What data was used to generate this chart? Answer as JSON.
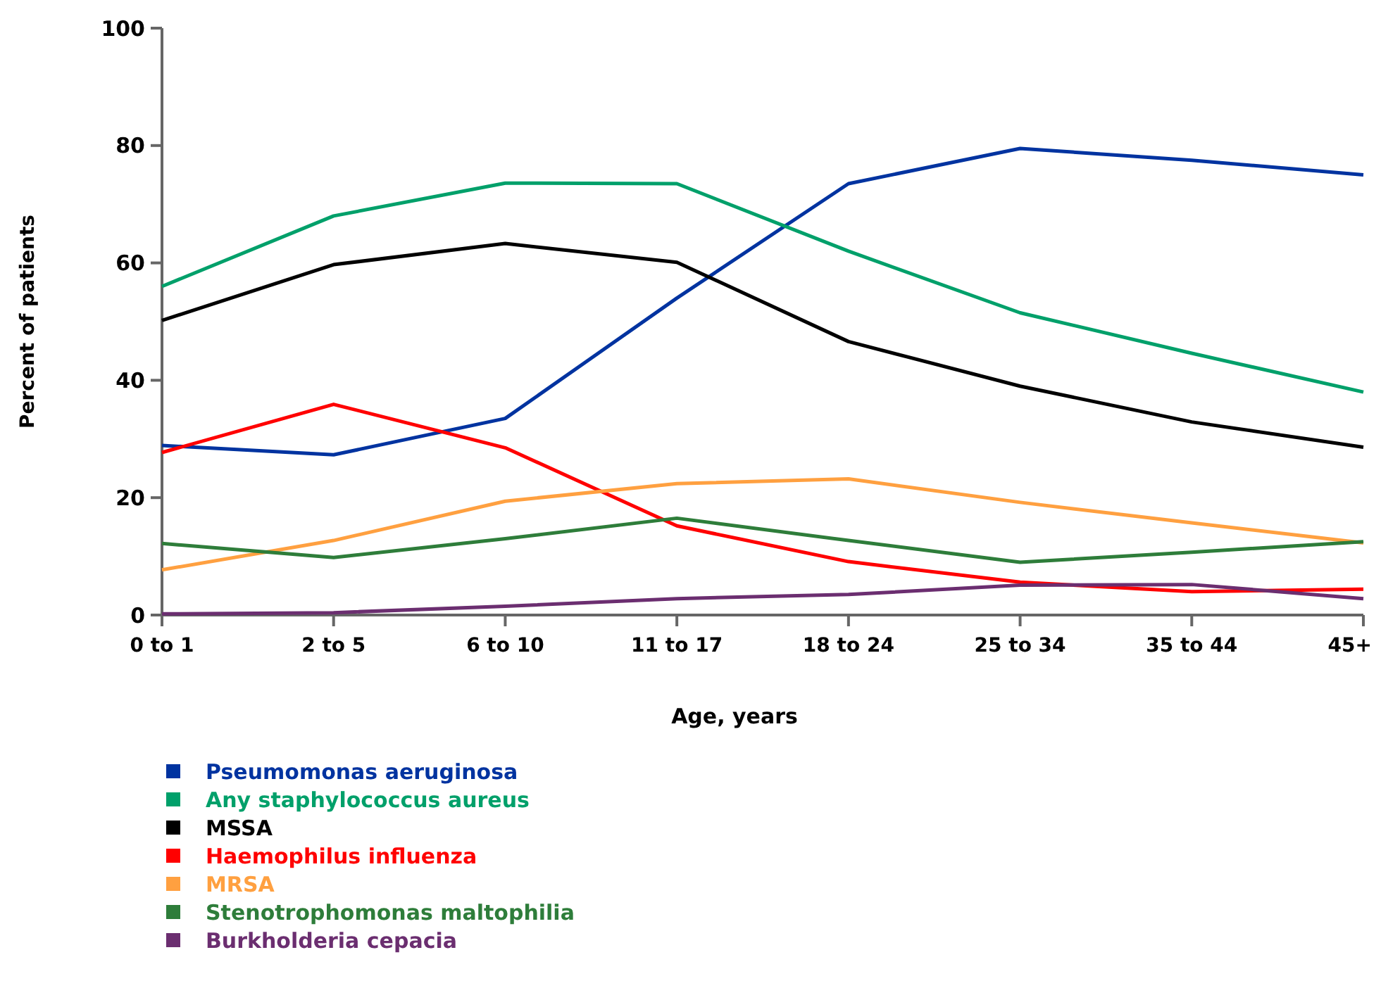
{
  "chart_data": {
    "type": "line",
    "xlabel": "Age, years",
    "ylabel": "Percent of patients",
    "categories": [
      "0 to 1",
      "2 to 5",
      "6 to 10",
      "11 to 17",
      "18 to 24",
      "25 to 34",
      "35 to 44",
      "45+"
    ],
    "ylim": [
      0,
      100
    ],
    "yticks": [
      0,
      20,
      40,
      60,
      80,
      100
    ],
    "grid": false,
    "legend": "bottom left",
    "marker": "none",
    "line_style": "solid",
    "series": [
      {
        "name": "Pseumomonas aeruginosa",
        "color": "#0033a0",
        "values": [
          28.9,
          27.3,
          33.5,
          54,
          73.5,
          79.5,
          77.5,
          75
        ]
      },
      {
        "name": "Any staphylococcus aureus",
        "color": "#00a06a",
        "values": [
          56,
          68,
          73.6,
          73.5,
          62,
          51.5,
          44.6,
          38
        ]
      },
      {
        "name": "MSSA",
        "color": "#000000",
        "values": [
          50.2,
          59.7,
          63.3,
          60.1,
          46.6,
          39,
          32.9,
          28.6
        ]
      },
      {
        "name": "Haemophilus influenza",
        "color": "#ff0000",
        "values": [
          27.7,
          35.9,
          28.5,
          15.2,
          9.1,
          5.6,
          4,
          4.4
        ]
      },
      {
        "name": "MRSA",
        "color": "#ffa040",
        "values": [
          7.7,
          12.7,
          19.4,
          22.4,
          23.2,
          19.2,
          15.7,
          12.3
        ]
      },
      {
        "name": "Stenotrophomonas maltophilia",
        "color": "#2e7d3a",
        "values": [
          12.2,
          9.8,
          13,
          16.5,
          12.7,
          9,
          10.7,
          12.5
        ]
      },
      {
        "name": "Burkholderia cepacia",
        "color": "#6b2e70",
        "values": [
          0.2,
          0.4,
          1.5,
          2.8,
          3.5,
          5.1,
          5.2,
          2.8
        ]
      }
    ]
  }
}
